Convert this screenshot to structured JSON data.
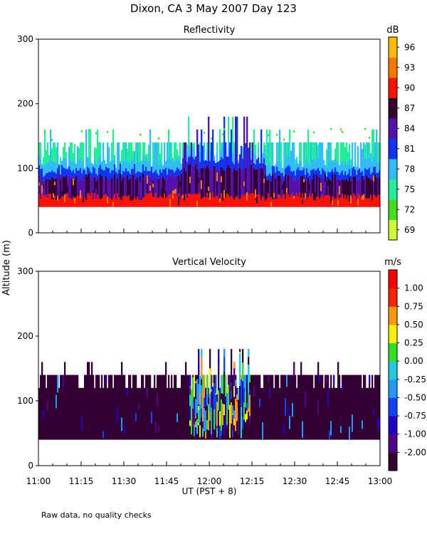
{
  "page": {
    "title": "Dixon, CA  3 May 2007  Day 123",
    "ylabel": "Altitude (m)",
    "xlabel": "UT  (PST + 8)",
    "footnote": "Raw data, no quality checks"
  },
  "chart_data": [
    {
      "type": "heatmap",
      "title": "Reflectivity",
      "colorbar_label": "dB",
      "ylim": [
        0,
        300
      ],
      "yticks": [
        0,
        100,
        200,
        300
      ],
      "x_range_hours": [
        11.0,
        13.0
      ],
      "colorbar": {
        "ticks": [
          "69",
          "72",
          "75",
          "78",
          "81",
          "84",
          "87",
          "90",
          "93",
          "96"
        ],
        "colors": [
          "#ccff33",
          "#44dd22",
          "#22ee99",
          "#33bbff",
          "#1133ff",
          "#5511aa",
          "#330033",
          "#ff1100",
          "#ff7700",
          "#ffbb00"
        ]
      },
      "data_extent": {
        "base_altitude_m": 40,
        "typical_top_m": 140,
        "max_top_m": 180
      },
      "layers_by_altitude": [
        {
          "from_m": 40,
          "to_m": 60,
          "value": "90 dB"
        },
        {
          "from_m": 60,
          "to_m": 85,
          "value": "87 dB"
        },
        {
          "from_m": 85,
          "to_m": 100,
          "value": "81 dB"
        },
        {
          "from_m": 100,
          "to_m": 140,
          "value": "75-78 dB"
        }
      ]
    },
    {
      "type": "heatmap",
      "title": "Vertical Velocity",
      "colorbar_label": "m/s",
      "ylim": [
        0,
        300
      ],
      "yticks": [
        0,
        100,
        200,
        300
      ],
      "x_range_hours": [
        11.0,
        13.0
      ],
      "colorbar": {
        "ticks": [
          "-2.00",
          "-1.00",
          "-0.75",
          "-0.50",
          "-0.25",
          "0.00",
          "0.25",
          "0.50",
          "0.75",
          "1.00"
        ],
        "colors": [
          "#330033",
          "#550088",
          "#2200cc",
          "#1144ff",
          "#2299ff",
          "#22ccdd",
          "#33dd22",
          "#ffee00",
          "#ff9900",
          "#ff2200",
          "#ff0000"
        ]
      },
      "data_extent": {
        "base_altitude_m": 40,
        "typical_top_m": 140,
        "max_top_m": 180
      },
      "dominant_value": "-2.00 m/s"
    }
  ],
  "xaxis": {
    "tick_labels": [
      "11:00",
      "11:15",
      "11:30",
      "11:45",
      "12:00",
      "12:15",
      "12:30",
      "12:45",
      "13:00"
    ]
  }
}
